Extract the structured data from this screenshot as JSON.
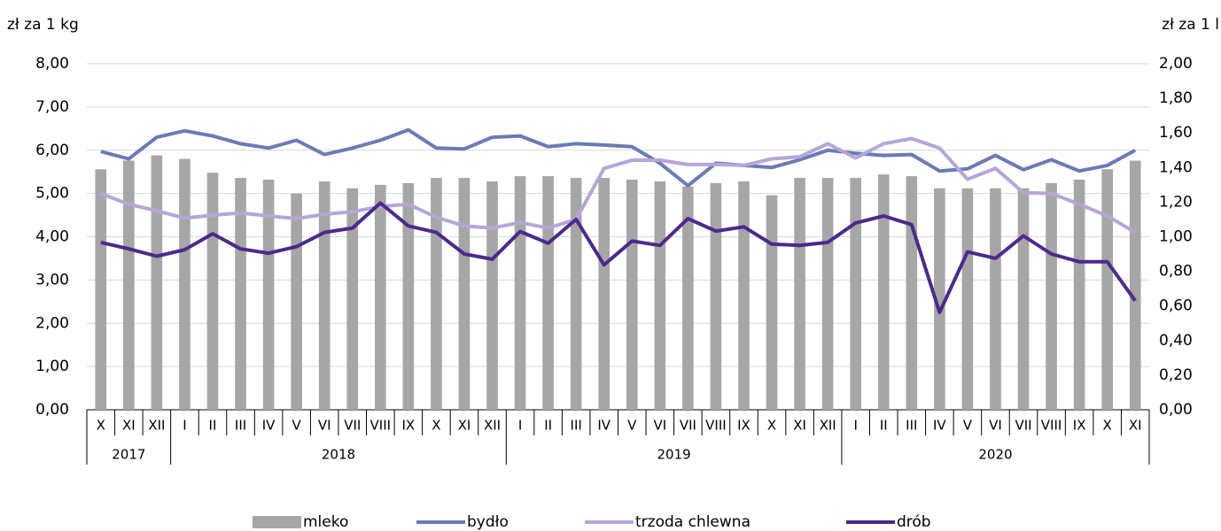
{
  "chart_data": {
    "type": "combo",
    "y_label": "zł za 1 kg",
    "y2_label": "zł za 1 l",
    "category_groups": [
      {
        "name": "2017",
        "categories": [
          "X",
          "XI",
          "XII"
        ]
      },
      {
        "name": "2018",
        "categories": [
          "I",
          "II",
          "III",
          "IV",
          "V",
          "VI",
          "VII",
          "VIII",
          "IX",
          "X",
          "XI",
          "XII"
        ]
      },
      {
        "name": "2019",
        "categories": [
          "I",
          "II",
          "III",
          "IV",
          "V",
          "VI",
          "VII",
          "VIII",
          "IX",
          "X",
          "XI",
          "XII"
        ]
      },
      {
        "name": "2020",
        "categories": [
          "I",
          "II",
          "III",
          "IV",
          "V",
          "VI",
          "VII",
          "VIII",
          "IX",
          "X",
          "XI"
        ]
      }
    ],
    "ylim": [
      0,
      8
    ],
    "yticks": [
      {
        "value": 0,
        "label": "0,00"
      },
      {
        "value": 1,
        "label": "1,00"
      },
      {
        "value": 2,
        "label": "2,00"
      },
      {
        "value": 3,
        "label": "3,00"
      },
      {
        "value": 4,
        "label": "4,00"
      },
      {
        "value": 5,
        "label": "5,00"
      },
      {
        "value": 6,
        "label": "6,00"
      },
      {
        "value": 7,
        "label": "7,00"
      },
      {
        "value": 8,
        "label": "8,00"
      }
    ],
    "y2lim": [
      0,
      2
    ],
    "y2ticks": [
      {
        "value": 0,
        "label": "0,00"
      },
      {
        "value": 0.2,
        "label": "0,20"
      },
      {
        "value": 0.4,
        "label": "0,40"
      },
      {
        "value": 0.6,
        "label": "0,60"
      },
      {
        "value": 0.8,
        "label": "0,80"
      },
      {
        "value": 1,
        "label": "1,00"
      },
      {
        "value": 1.2,
        "label": "1,20"
      },
      {
        "value": 1.4,
        "label": "1,40"
      },
      {
        "value": 1.6,
        "label": "1,60"
      },
      {
        "value": 1.8,
        "label": "1,80"
      },
      {
        "value": 2,
        "label": "2,00"
      }
    ],
    "grid": true,
    "legend": "bottom",
    "series": [
      {
        "name": "mleko",
        "type": "bar",
        "axis": "y2",
        "color": "#a6a6a6",
        "values": [
          1.39,
          1.44,
          1.47,
          1.45,
          1.37,
          1.34,
          1.33,
          1.25,
          1.32,
          1.28,
          1.3,
          1.31,
          1.34,
          1.34,
          1.32,
          1.35,
          1.35,
          1.34,
          1.34,
          1.33,
          1.32,
          1.29,
          1.31,
          1.32,
          1.24,
          1.34,
          1.34,
          1.34,
          1.36,
          1.35,
          1.28,
          1.28,
          1.28,
          1.28,
          1.31,
          1.33,
          1.39,
          1.44
        ]
      },
      {
        "name": "bydło",
        "type": "line",
        "color": "#6a7bb4",
        "values": [
          5.97,
          5.8,
          6.3,
          6.45,
          6.33,
          6.15,
          6.05,
          6.23,
          5.9,
          6.05,
          6.23,
          6.47,
          6.05,
          6.03,
          6.3,
          6.33,
          6.08,
          6.15,
          6.12,
          6.08,
          5.7,
          5.18,
          5.7,
          5.65,
          5.6,
          5.78,
          6.0,
          5.93,
          5.88,
          5.9,
          5.52,
          5.57,
          5.88,
          5.55,
          5.78,
          5.52,
          5.65,
          6.0
        ]
      },
      {
        "name": "trzoda chlewna",
        "type": "line",
        "color": "#b5a6d8",
        "values": [
          5.0,
          4.75,
          4.6,
          4.43,
          4.5,
          4.55,
          4.48,
          4.42,
          4.52,
          4.58,
          4.7,
          4.75,
          4.45,
          4.25,
          4.2,
          4.33,
          4.2,
          4.4,
          5.58,
          5.77,
          5.77,
          5.67,
          5.67,
          5.65,
          5.8,
          5.85,
          6.15,
          5.82,
          6.15,
          6.27,
          6.05,
          5.33,
          5.58,
          5.02,
          5.0,
          4.75,
          4.48,
          4.1
        ]
      },
      {
        "name": "drób",
        "type": "line",
        "color": "#4b2a8c",
        "values": [
          3.87,
          3.72,
          3.55,
          3.7,
          4.07,
          3.72,
          3.62,
          3.77,
          4.1,
          4.2,
          4.78,
          4.25,
          4.1,
          3.6,
          3.48,
          4.12,
          3.85,
          4.4,
          3.35,
          3.9,
          3.8,
          4.42,
          4.13,
          4.23,
          3.83,
          3.8,
          3.87,
          4.32,
          4.48,
          4.28,
          2.25,
          3.65,
          3.5,
          4.02,
          3.6,
          3.42,
          3.42,
          2.52
        ]
      }
    ]
  }
}
